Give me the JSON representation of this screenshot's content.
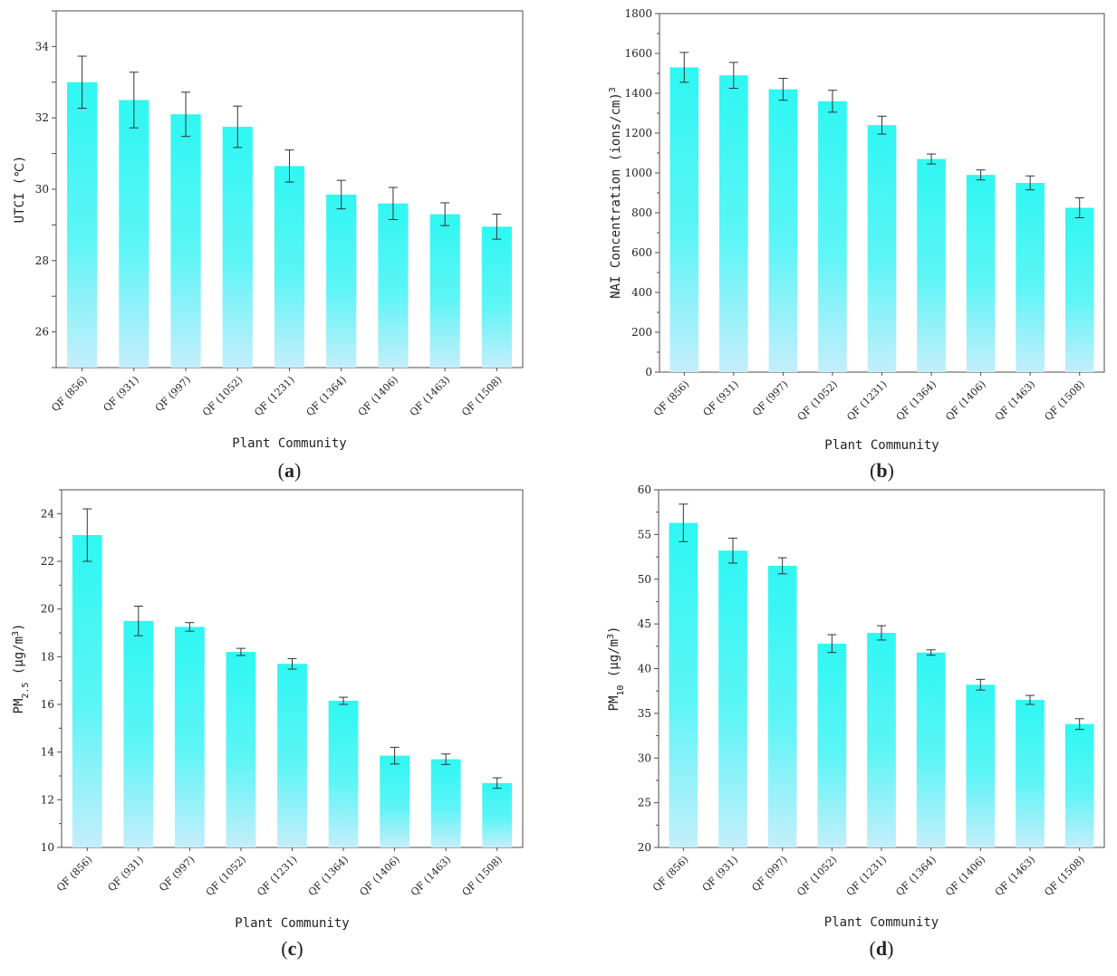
{
  "bar_gradient": {
    "top": "#2ef7f2",
    "mid": "#5df5f6",
    "bottom": "#c4eefb"
  },
  "chart_data": [
    {
      "type": "bar",
      "panel": "a",
      "categories": [
        "QF (856)",
        "QF (931)",
        "QF (997)",
        "QF (1052)",
        "QF (1231)",
        "QF (1364)",
        "QF (1406)",
        "QF (1463)",
        "QF (1508)"
      ],
      "values": [
        33.0,
        32.5,
        32.1,
        31.75,
        30.65,
        29.85,
        29.6,
        29.3,
        28.95
      ],
      "errors": [
        0.73,
        0.78,
        0.62,
        0.58,
        0.45,
        0.4,
        0.45,
        0.32,
        0.35
      ],
      "xlabel": "Plant Community",
      "ylabel": {
        "main": "UTCI (℃)",
        "sub": "",
        "units": ""
      },
      "ylim": [
        25,
        35
      ],
      "yticks": [
        26,
        28,
        30,
        32,
        34
      ],
      "ymajor": 2
    },
    {
      "type": "bar",
      "panel": "b",
      "categories": [
        "QF (856)",
        "QF (931)",
        "QF (997)",
        "QF (1052)",
        "QF (1231)",
        "QF (1364)",
        "QF (1406)",
        "QF (1463)",
        "QF (1508)"
      ],
      "values": [
        1530,
        1490,
        1420,
        1360,
        1240,
        1070,
        990,
        950,
        825
      ],
      "errors": [
        75,
        65,
        55,
        55,
        45,
        25,
        25,
        35,
        50
      ],
      "xlabel": "Plant Community",
      "ylabel": {
        "main": "NAI Concentration (ions/cm",
        "sub": "",
        "sup": "3",
        "units": ")"
      },
      "ylim": [
        0,
        1800
      ],
      "yticks": [
        0,
        200,
        400,
        600,
        800,
        1000,
        1200,
        1400,
        1600,
        1800
      ],
      "ymajor": 200
    },
    {
      "type": "bar",
      "panel": "c",
      "categories": [
        "QF (856)",
        "QF (931)",
        "QF (997)",
        "QF (1052)",
        "QF (1231)",
        "QF (1364)",
        "QF (1406)",
        "QF (1463)",
        "QF (1508)"
      ],
      "values": [
        23.1,
        19.5,
        19.25,
        18.2,
        17.7,
        16.15,
        13.85,
        13.7,
        12.7
      ],
      "errors": [
        1.1,
        0.62,
        0.18,
        0.15,
        0.22,
        0.15,
        0.35,
        0.22,
        0.22
      ],
      "xlabel": "Plant Community",
      "ylabel": {
        "main": "PM",
        "sub": "2.5",
        "units": " (μg/m",
        "sup": "3",
        "tail": ")"
      },
      "ylim": [
        10,
        25
      ],
      "yticks": [
        10,
        12,
        14,
        16,
        18,
        20,
        22,
        24
      ],
      "ymajor": 2
    },
    {
      "type": "bar",
      "panel": "d",
      "categories": [
        "QF (856)",
        "QF (931)",
        "QF (997)",
        "QF (1052)",
        "QF (1231)",
        "QF (1364)",
        "QF (1406)",
        "QF (1463)",
        "QF (1508)"
      ],
      "values": [
        56.3,
        53.2,
        51.5,
        42.8,
        44.0,
        41.8,
        38.2,
        36.5,
        33.8
      ],
      "errors": [
        2.1,
        1.4,
        0.9,
        1.0,
        0.8,
        0.3,
        0.6,
        0.5,
        0.6
      ],
      "xlabel": "Plant Community",
      "ylabel": {
        "main": "PM",
        "sub": "10",
        "units": " (μg/m",
        "sup": "3",
        "tail": ")"
      },
      "ylim": [
        20,
        60
      ],
      "yticks": [
        20,
        25,
        30,
        35,
        40,
        45,
        50,
        55,
        60
      ],
      "ymajor": 5
    }
  ],
  "captions": [
    {
      "open": "(",
      "letter": "a",
      "close": ")"
    },
    {
      "open": "(",
      "letter": "b",
      "close": ")"
    },
    {
      "open": "(",
      "letter": "c",
      "close": ")"
    },
    {
      "open": "(",
      "letter": "d",
      "close": ")"
    }
  ]
}
